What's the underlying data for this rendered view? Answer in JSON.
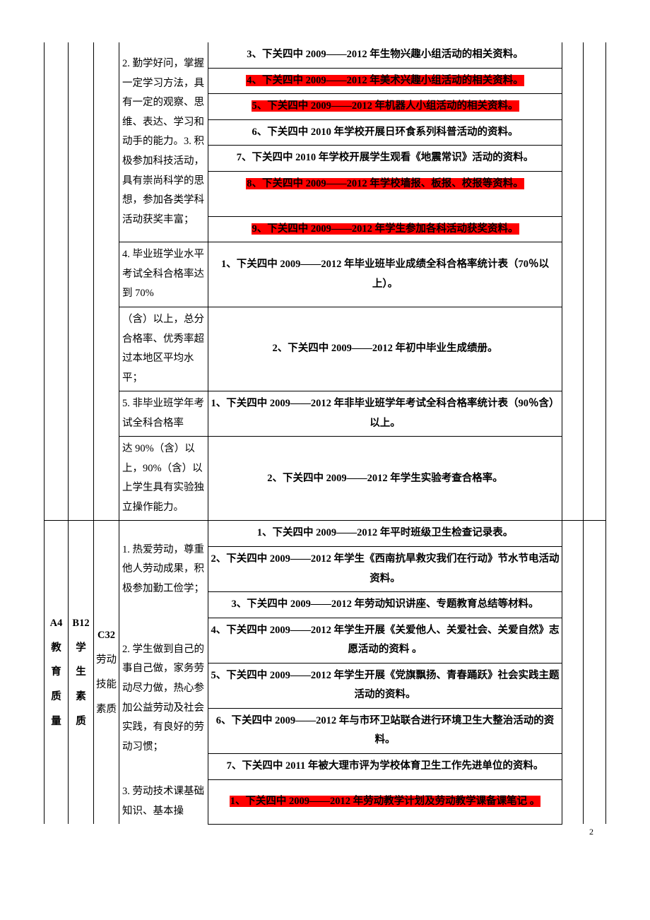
{
  "section1": {
    "col_d": {
      "part1_top": "",
      "part1_rest": "2. 勤学好问，掌握一定学习方法，具有一定的观察、思维、表达、学习和动手的能力。3. 积极参加科技活动，具有崇尚科学的思想，参加各类学科活动获奖丰富；",
      "part2": "4. 毕业班学业水平考试全科合格率达到 70%",
      "part3": "（含）以上，总分合格率、优秀率超过本地区平均水平；",
      "part4": "5. 非毕业班学年考试全科合格率",
      "part5": "达 90%（含）以上，90%（含）以上学生具有实验独立操作能力。"
    },
    "rows": [
      {
        "text": "3、下关四中 2009——2012 年生物兴趣小组活动的相关资料。",
        "hl": false,
        "bold": true
      },
      {
        "text": "4、下关四中 2009——2012 年美术兴趣小组活动的相关资料。",
        "hl": true,
        "bold": true
      },
      {
        "text": "5、下关四中 2009——2012 年机器人小组活动的相关资料。",
        "hl": true,
        "bold": true
      },
      {
        "text": "6、下关四中 2010 年学校开展日环食系列科普活动的资料。",
        "hl": false,
        "bold": true
      },
      {
        "text": "7、下关四中 2010 年学校开展学生观看《地震常识》活动的资料。",
        "hl": false,
        "bold": true
      },
      {
        "text": "8、下关四中 2009——2012 年学校墙报、板报、校报等资料。",
        "hl": true,
        "bold": true,
        "spacer_after": true
      },
      {
        "text": "9、下关四中 2009——2012 年学生参加各科活动获奖资料。",
        "hl": true,
        "bold": true
      }
    ],
    "rows2": [
      {
        "text": "1、下关四中 2009——2012 年毕业班毕业成绩全科合格率统计表（70％以上）。",
        "bold": true
      },
      {
        "text": "2、下关四中 2009——2012 年初中毕业生成绩册。",
        "bold": true
      },
      {
        "text": "1、下关四中 2009——2012 年非毕业班学年考试全科合格率统计表（90％含）以上。",
        "bold": true
      },
      {
        "text": "2、下关四中 2009——2012 年学生实验考查合格率。",
        "bold": true
      }
    ]
  },
  "section2": {
    "col_a_lines": [
      "A4",
      "教",
      "育",
      "质",
      "量"
    ],
    "col_b_lines": [
      "B12",
      "学",
      "生",
      "素",
      "质"
    ],
    "col_c_lines": [
      "C32",
      "劳动",
      "技能",
      "素质"
    ],
    "col_d": {
      "part1": "1. 热爱劳动，尊重他人劳动成果，积极参加勤工俭学；",
      "part2": "2. 学生做到自己的事自己做，家务劳动尽力做，热心参加公益劳动及社会实践，有良好的劳动习惯；",
      "part3": "3. 劳动技术课基础知识、基本操"
    },
    "rows": [
      {
        "text": "1、下关四中 2009——2012 年平时班级卫生检查记录表。",
        "hl": false,
        "bold": true
      },
      {
        "text": "2、下关四中 2009——2012 年学生《西南抗旱救灾我们在行动》节水节电活动资料。",
        "hl": false,
        "bold": true
      },
      {
        "text": "3、下关四中 2009——2012 年劳动知识讲座、专题教育总结等材料。",
        "hl": false,
        "bold": true
      },
      {
        "text": "4、下关四中 2009——2012 年学生开展《关爱他人、关爱社会、关爱自然》志愿活动的资料 。",
        "hl": false,
        "bold": true
      },
      {
        "text": "5、下关四中 2009——2012 年学生开展《党旗飘扬、青春踊跃》社会实践主题活动的资料。",
        "hl": false,
        "bold": true
      },
      {
        "text": "6、下关四中 2009——2012 年与市环卫站联合进行环境卫生大整治活动的资料。",
        "hl": false,
        "bold": true
      },
      {
        "text": "7、下关四中 2011 年被大理市评为学校体育卫生工作先进单位的资料。",
        "hl": false,
        "bold": true
      },
      {
        "text": "1、下关四中 2009——2012 年劳动教学计划及劳动教学课备课笔记 。",
        "hl": true,
        "bold": true
      }
    ]
  },
  "page_number": "2"
}
